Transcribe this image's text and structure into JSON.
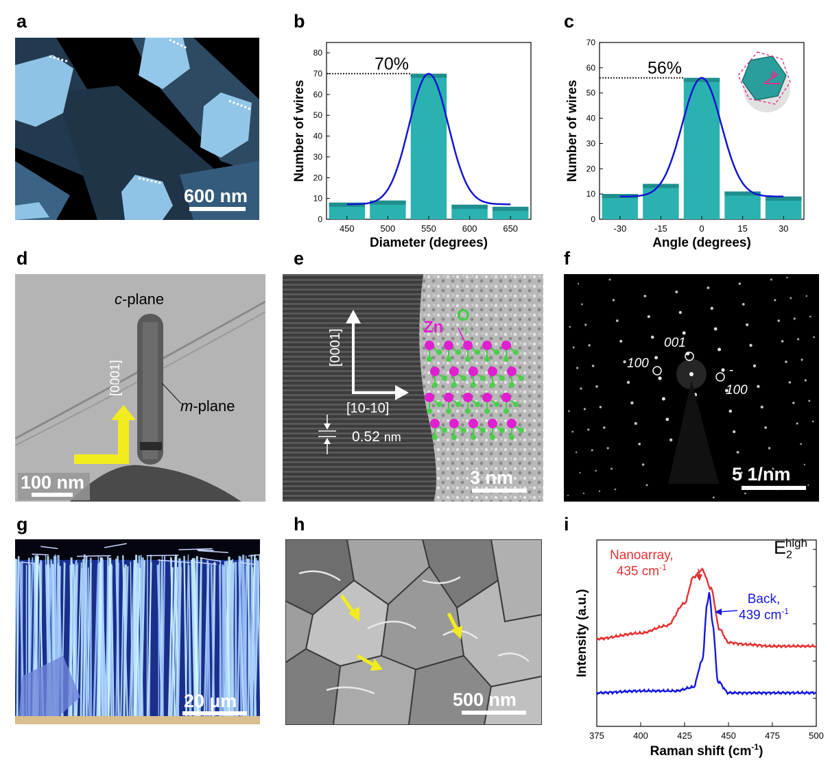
{
  "panel_labels": [
    "a",
    "b",
    "c",
    "d",
    "e",
    "f",
    "g",
    "h",
    "i"
  ],
  "panel_a": {
    "scale_bar": "600 nm"
  },
  "panel_b": {
    "percent_label": "70%",
    "chart_data": {
      "type": "bar",
      "categories": [
        "450",
        "500",
        "550",
        "600",
        "650"
      ],
      "values": [
        8,
        9,
        70,
        7,
        6
      ],
      "xlabel": "Diameter (degrees)",
      "ylabel": "Number of wires",
      "ylim": [
        0,
        85
      ],
      "yticks": [
        "0",
        "10",
        "20",
        "30",
        "40",
        "50",
        "60",
        "70",
        "80"
      ],
      "xticks": [
        "450",
        "500",
        "550",
        "600",
        "650"
      ],
      "fit": "gaussian",
      "fit_color": "#1414d2",
      "bar_color": "#2ab2b0"
    }
  },
  "panel_c": {
    "percent_label": "56%",
    "inset_symbol": "θ",
    "chart_data": {
      "type": "bar",
      "categories": [
        "-30",
        "-15",
        "0",
        "15",
        "30"
      ],
      "values": [
        10,
        14,
        56,
        11,
        9
      ],
      "xlabel": "Angle (degrees)",
      "ylabel": "Number of wires",
      "ylim": [
        0,
        70
      ],
      "yticks": [
        "0",
        "10",
        "20",
        "30",
        "40",
        "50",
        "60",
        "70"
      ],
      "xticks": [
        "-30",
        "-15",
        "0",
        "15",
        "30"
      ],
      "fit": "gaussian",
      "fit_color": "#1414d2",
      "bar_color": "#2ab2b0"
    }
  },
  "panel_d": {
    "c_plane": "c",
    "c_plane_suffix": "-plane",
    "m_plane": "m",
    "m_plane_suffix": "-plane",
    "direction": "[0001]",
    "scale_bar": "100 nm"
  },
  "panel_e": {
    "direction_vertical": "[0001]",
    "direction_horizontal": "[10-10]",
    "spacing": "0.52",
    "spacing_unit": "nm",
    "atom_zn": "Zn",
    "atom_o": "O",
    "scale_bar": "3 nm"
  },
  "panel_f": {
    "spot_001": "001",
    "spot_100": "100",
    "spot_m100": "100",
    "spot_m100_bar": "-",
    "scale_bar": "5 1/nm"
  },
  "panel_g": {
    "scale_bar": "20 µm"
  },
  "panel_h": {
    "scale_bar": "500 nm"
  },
  "panel_i": {
    "peak_label": "E",
    "peak_sub": "2",
    "peak_sup": "high",
    "nanoarray_label": "Nanoarray,",
    "nanoarray_value": "435 cm",
    "nanoarray_exp": "-1",
    "back_label": "Back,",
    "back_value": "439 cm",
    "back_exp": "-1",
    "chart_data": {
      "type": "line",
      "xlabel": "Raman shift (cm",
      "xlabel_exp": "-1",
      "xlabel_close": ")",
      "ylabel": "Intensity (a.u.)",
      "xlim": [
        375,
        500
      ],
      "xticks": [
        "375",
        "400",
        "425",
        "450",
        "475",
        "500"
      ],
      "series": [
        {
          "name": "Nanoarray, 435 cm-1",
          "color": "#e53030",
          "x": [
            375,
            400,
            415,
            425,
            430,
            435,
            440,
            445,
            450,
            460,
            475,
            500
          ],
          "y": [
            0.47,
            0.5,
            0.54,
            0.66,
            0.8,
            0.84,
            0.74,
            0.52,
            0.45,
            0.44,
            0.43,
            0.43
          ]
        },
        {
          "name": "Back, 439 cm-1",
          "color": "#1616e0",
          "x": [
            375,
            400,
            420,
            430,
            435,
            438,
            439,
            441,
            444,
            450,
            475,
            500
          ],
          "y": [
            0.18,
            0.19,
            0.19,
            0.21,
            0.35,
            0.66,
            0.72,
            0.55,
            0.24,
            0.18,
            0.18,
            0.18
          ]
        }
      ]
    }
  }
}
